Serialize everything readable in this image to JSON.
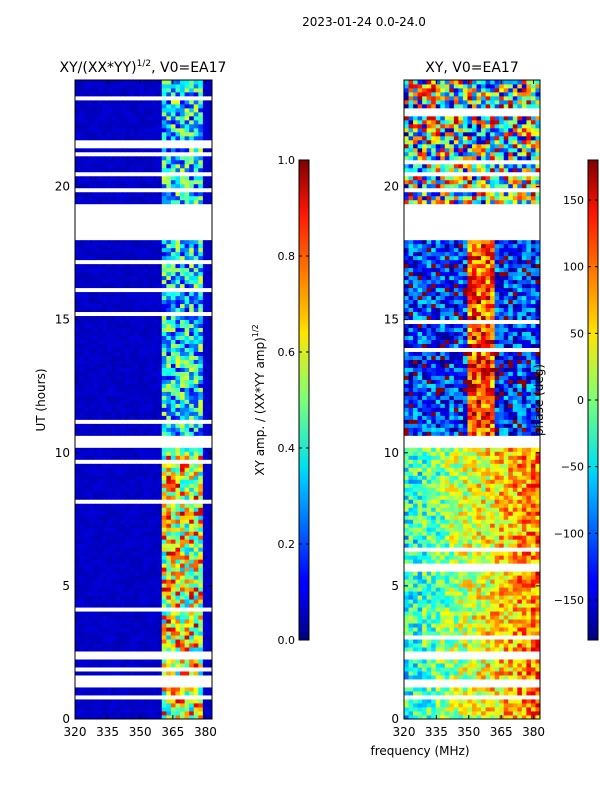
{
  "figure_title": "2023-01-24 0.0-24.0",
  "chart_data": [
    {
      "type": "heatmap",
      "title_prefix": "XY/(XX*YY)",
      "title_exponent": "1/2",
      "title_suffix": ", V0=EA17",
      "xlabel": "",
      "ylabel": "UT (hours)",
      "xlim": [
        320,
        383
      ],
      "ylim": [
        0,
        24
      ],
      "xticks": [
        320,
        335,
        350,
        365,
        380
      ],
      "yticks": [
        0,
        5,
        10,
        15,
        20
      ],
      "colorbar": {
        "label_main": "XY amp. / (XX*YY amp)",
        "label_exponent": "1/2",
        "range": [
          0.0,
          1.0
        ],
        "ticks": [
          "0.0",
          "0.2",
          "0.4",
          "0.6",
          "0.8",
          "1.0"
        ],
        "tick_values": [
          0.0,
          0.2,
          0.4,
          0.6,
          0.8,
          1.0
        ]
      },
      "background_level": 0.05,
      "active_band_mhz": [
        360,
        378
      ],
      "gaps_hours": [
        [
          18.0,
          19.3
        ],
        [
          10.2,
          10.7
        ],
        [
          1.2,
          1.45
        ],
        [
          0.8,
          0.9
        ],
        [
          2.3,
          2.55
        ],
        [
          23.3,
          23.45
        ],
        [
          19.8,
          20.0
        ]
      ]
    },
    {
      "type": "heatmap",
      "title": "XY, V0=EA17",
      "xlabel": "frequency (MHz)",
      "ylabel": "",
      "xlim": [
        320,
        383
      ],
      "ylim": [
        0,
        24
      ],
      "xticks": [
        320,
        335,
        350,
        365,
        380
      ],
      "yticks": [
        0,
        5,
        10,
        15,
        20
      ],
      "colorbar": {
        "label_main": "phase (deg)",
        "range": [
          -180,
          180
        ],
        "ticks": [
          "−150",
          "−100",
          "−50",
          "0",
          "50",
          "100",
          "150"
        ],
        "tick_values": [
          -150,
          -100,
          -50,
          0,
          50,
          100,
          150
        ]
      },
      "gaps_hours": [
        [
          18.0,
          19.3
        ],
        [
          10.2,
          10.7
        ],
        [
          1.2,
          1.45
        ],
        [
          0.8,
          0.9
        ],
        [
          2.3,
          2.55
        ],
        [
          19.8,
          20.0
        ]
      ]
    }
  ]
}
